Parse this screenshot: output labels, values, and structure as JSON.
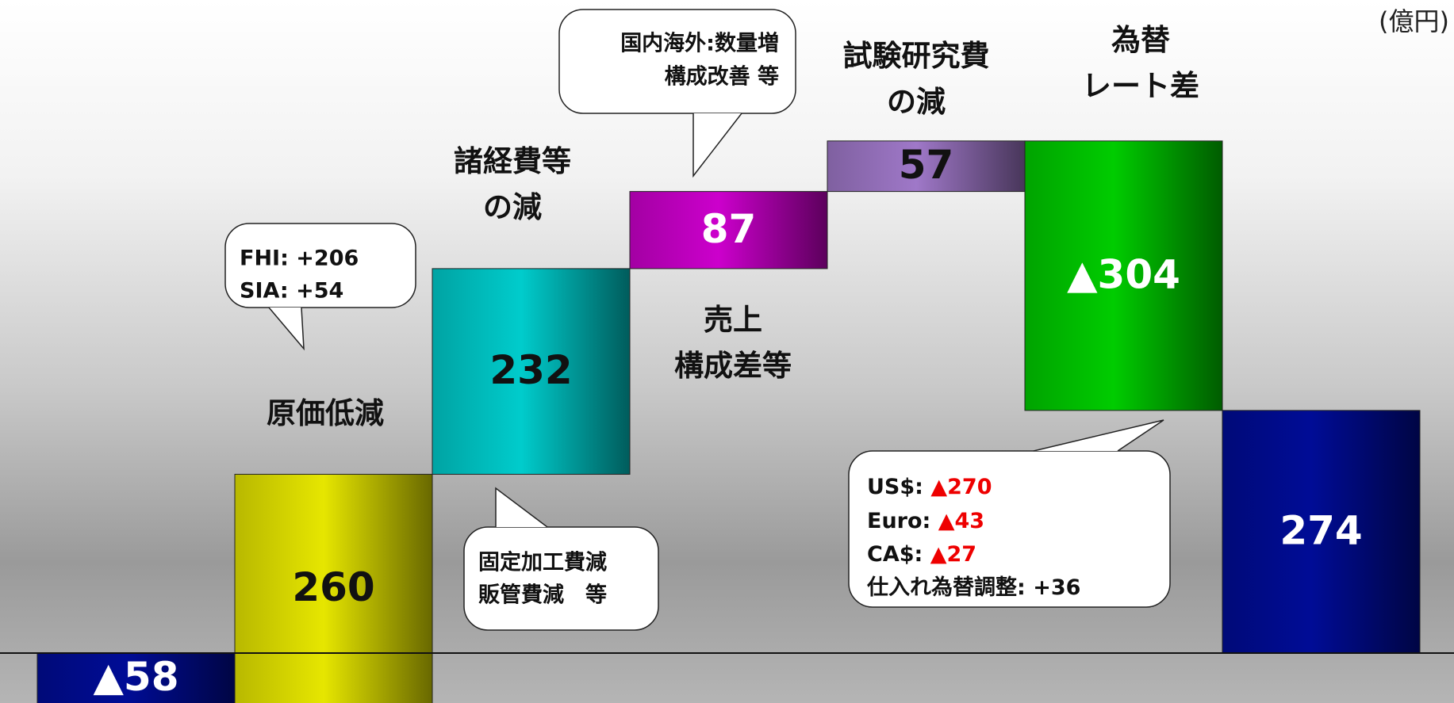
{
  "chart_data": {
    "type": "waterfall",
    "unit": "(億円)",
    "categories": [
      null,
      "原価低減",
      "諸経費等\nの減",
      "売上\n構成差等",
      "試験研究費\nの減",
      "為替\nレート差",
      null
    ],
    "values": [
      -58,
      260,
      232,
      87,
      57,
      -304,
      274
    ],
    "value_labels": [
      "▲58",
      "260",
      "232",
      "87",
      "57",
      "▲304",
      "274"
    ],
    "colors": [
      "#000c96",
      "#e6e600",
      "#00cccc",
      "#cc00cc",
      "#9f78c8",
      "#00cc00",
      "#000c96"
    ],
    "totals": [
      true,
      false,
      false,
      false,
      false,
      false,
      true
    ],
    "ylim": [
      -56,
      737
    ],
    "callouts": [
      [
        "FHI: +206",
        "SIA: +54"
      ],
      [
        "固定加工費減",
        "販管費減　等"
      ],
      [
        "国内海外:数量増",
        "構成改善 等"
      ],
      [
        {
          "name": "US$:",
          "value": "▲270"
        },
        {
          "name": "Euro:",
          "value": "▲43"
        },
        {
          "name": "CA$:",
          "value": "▲27"
        },
        {
          "name": "仕入れ為替調整:",
          "value": "+36"
        }
      ]
    ]
  }
}
